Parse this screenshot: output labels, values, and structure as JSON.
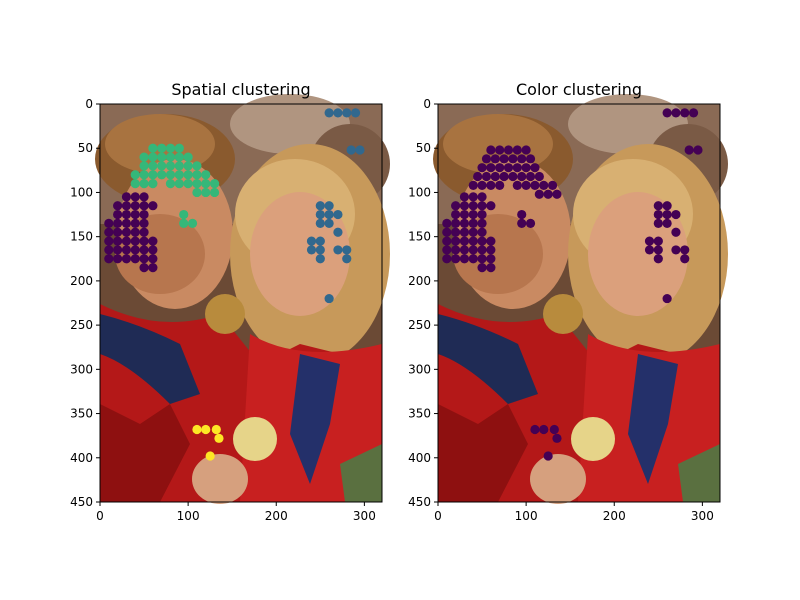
{
  "colors": {
    "cluster_0": "#440154",
    "cluster_1": "#31688e",
    "cluster_2": "#35b779",
    "cluster_3": "#fde725",
    "axis": "#000000"
  },
  "chart_data": [
    {
      "type": "scatter",
      "title": "Spatial clustering",
      "background": "photograph",
      "xlim": [
        0,
        320
      ],
      "ylim": [
        450,
        0
      ],
      "y_inverted": true,
      "x_ticks": [
        0,
        100,
        200,
        300
      ],
      "y_ticks": [
        0,
        50,
        100,
        150,
        200,
        250,
        300,
        350,
        400,
        450
      ],
      "grid": false,
      "clusters": [
        {
          "color": "#440154",
          "points": [
            [
              30,
              105
            ],
            [
              40,
              105
            ],
            [
              50,
              105
            ],
            [
              20,
              115
            ],
            [
              30,
              115
            ],
            [
              40,
              115
            ],
            [
              50,
              115
            ],
            [
              60,
              115
            ],
            [
              20,
              125
            ],
            [
              30,
              125
            ],
            [
              40,
              125
            ],
            [
              50,
              125
            ],
            [
              10,
              135
            ],
            [
              20,
              135
            ],
            [
              30,
              135
            ],
            [
              40,
              135
            ],
            [
              50,
              135
            ],
            [
              10,
              145
            ],
            [
              20,
              145
            ],
            [
              30,
              145
            ],
            [
              40,
              145
            ],
            [
              50,
              145
            ],
            [
              10,
              155
            ],
            [
              20,
              155
            ],
            [
              30,
              155
            ],
            [
              40,
              155
            ],
            [
              50,
              155
            ],
            [
              60,
              155
            ],
            [
              10,
              165
            ],
            [
              20,
              165
            ],
            [
              30,
              165
            ],
            [
              40,
              165
            ],
            [
              50,
              165
            ],
            [
              60,
              165
            ],
            [
              10,
              175
            ],
            [
              20,
              175
            ],
            [
              30,
              175
            ],
            [
              40,
              175
            ],
            [
              50,
              175
            ],
            [
              60,
              175
            ],
            [
              50,
              185
            ],
            [
              60,
              185
            ]
          ]
        },
        {
          "color": "#31688e",
          "points": [
            [
              260,
              10
            ],
            [
              270,
              10
            ],
            [
              280,
              10
            ],
            [
              290,
              10
            ],
            [
              285,
              52
            ],
            [
              295,
              52
            ],
            [
              250,
              115
            ],
            [
              260,
              115
            ],
            [
              250,
              125
            ],
            [
              260,
              125
            ],
            [
              270,
              125
            ],
            [
              250,
              135
            ],
            [
              260,
              135
            ],
            [
              270,
              145
            ],
            [
              240,
              155
            ],
            [
              250,
              155
            ],
            [
              240,
              165
            ],
            [
              250,
              165
            ],
            [
              270,
              165
            ],
            [
              280,
              165
            ],
            [
              250,
              175
            ],
            [
              280,
              175
            ],
            [
              260,
              220
            ]
          ]
        },
        {
          "color": "#35b779",
          "points": [
            [
              60,
              50
            ],
            [
              70,
              50
            ],
            [
              80,
              50
            ],
            [
              90,
              50
            ],
            [
              50,
              60
            ],
            [
              60,
              60
            ],
            [
              70,
              60
            ],
            [
              80,
              60
            ],
            [
              90,
              60
            ],
            [
              100,
              60
            ],
            [
              50,
              70
            ],
            [
              60,
              70
            ],
            [
              70,
              70
            ],
            [
              80,
              70
            ],
            [
              90,
              70
            ],
            [
              100,
              70
            ],
            [
              110,
              70
            ],
            [
              40,
              80
            ],
            [
              50,
              80
            ],
            [
              60,
              80
            ],
            [
              70,
              80
            ],
            [
              80,
              80
            ],
            [
              90,
              80
            ],
            [
              100,
              80
            ],
            [
              110,
              80
            ],
            [
              120,
              80
            ],
            [
              40,
              90
            ],
            [
              50,
              90
            ],
            [
              60,
              90
            ],
            [
              80,
              90
            ],
            [
              90,
              90
            ],
            [
              100,
              90
            ],
            [
              110,
              90
            ],
            [
              120,
              90
            ],
            [
              130,
              90
            ],
            [
              110,
              100
            ],
            [
              120,
              100
            ],
            [
              130,
              100
            ],
            [
              95,
              125
            ],
            [
              95,
              135
            ],
            [
              105,
              135
            ]
          ]
        },
        {
          "color": "#fde725",
          "points": [
            [
              110,
              368
            ],
            [
              120,
              368
            ],
            [
              132,
              368
            ],
            [
              135,
              378
            ],
            [
              125,
              398
            ]
          ]
        }
      ]
    },
    {
      "type": "scatter",
      "title": "Color clustering",
      "background": "photograph",
      "xlim": [
        0,
        320
      ],
      "ylim": [
        450,
        0
      ],
      "y_inverted": true,
      "x_ticks": [
        0,
        100,
        200,
        300
      ],
      "y_ticks": [
        0,
        50,
        100,
        150,
        200,
        250,
        300,
        350,
        400,
        450
      ],
      "grid": false,
      "clusters": [
        {
          "color": "#440154",
          "points": [
            [
              260,
              10
            ],
            [
              270,
              10
            ],
            [
              280,
              10
            ],
            [
              290,
              10
            ],
            [
              285,
              52
            ],
            [
              295,
              52
            ],
            [
              60,
              52
            ],
            [
              70,
              52
            ],
            [
              80,
              52
            ],
            [
              90,
              52
            ],
            [
              100,
              52
            ],
            [
              55,
              62
            ],
            [
              65,
              62
            ],
            [
              75,
              62
            ],
            [
              85,
              62
            ],
            [
              95,
              62
            ],
            [
              105,
              62
            ],
            [
              50,
              72
            ],
            [
              60,
              72
            ],
            [
              70,
              72
            ],
            [
              80,
              72
            ],
            [
              90,
              72
            ],
            [
              100,
              72
            ],
            [
              110,
              72
            ],
            [
              45,
              82
            ],
            [
              55,
              82
            ],
            [
              65,
              82
            ],
            [
              75,
              82
            ],
            [
              85,
              82
            ],
            [
              95,
              82
            ],
            [
              105,
              82
            ],
            [
              115,
              82
            ],
            [
              40,
              92
            ],
            [
              50,
              92
            ],
            [
              60,
              92
            ],
            [
              70,
              92
            ],
            [
              90,
              92
            ],
            [
              100,
              92
            ],
            [
              110,
              92
            ],
            [
              120,
              92
            ],
            [
              130,
              92
            ],
            [
              115,
              102
            ],
            [
              125,
              102
            ],
            [
              135,
              102
            ],
            [
              30,
              105
            ],
            [
              40,
              105
            ],
            [
              50,
              105
            ],
            [
              20,
              115
            ],
            [
              30,
              115
            ],
            [
              40,
              115
            ],
            [
              50,
              115
            ],
            [
              60,
              115
            ],
            [
              95,
              125
            ],
            [
              20,
              125
            ],
            [
              30,
              125
            ],
            [
              40,
              125
            ],
            [
              50,
              125
            ],
            [
              95,
              135
            ],
            [
              105,
              135
            ],
            [
              10,
              135
            ],
            [
              20,
              135
            ],
            [
              30,
              135
            ],
            [
              40,
              135
            ],
            [
              50,
              135
            ],
            [
              10,
              145
            ],
            [
              20,
              145
            ],
            [
              30,
              145
            ],
            [
              40,
              145
            ],
            [
              50,
              145
            ],
            [
              10,
              155
            ],
            [
              20,
              155
            ],
            [
              30,
              155
            ],
            [
              40,
              155
            ],
            [
              50,
              155
            ],
            [
              60,
              155
            ],
            [
              10,
              165
            ],
            [
              20,
              165
            ],
            [
              30,
              165
            ],
            [
              40,
              165
            ],
            [
              50,
              165
            ],
            [
              60,
              165
            ],
            [
              10,
              175
            ],
            [
              20,
              175
            ],
            [
              30,
              175
            ],
            [
              40,
              175
            ],
            [
              50,
              175
            ],
            [
              60,
              175
            ],
            [
              50,
              185
            ],
            [
              60,
              185
            ],
            [
              250,
              115
            ],
            [
              260,
              115
            ],
            [
              250,
              125
            ],
            [
              260,
              125
            ],
            [
              270,
              125
            ],
            [
              250,
              135
            ],
            [
              260,
              135
            ],
            [
              270,
              145
            ],
            [
              240,
              155
            ],
            [
              250,
              155
            ],
            [
              240,
              165
            ],
            [
              250,
              165
            ],
            [
              270,
              165
            ],
            [
              280,
              165
            ],
            [
              250,
              175
            ],
            [
              280,
              175
            ],
            [
              260,
              220
            ],
            [
              110,
              368
            ],
            [
              120,
              368
            ],
            [
              132,
              368
            ],
            [
              135,
              378
            ],
            [
              125,
              398
            ]
          ]
        }
      ]
    }
  ]
}
